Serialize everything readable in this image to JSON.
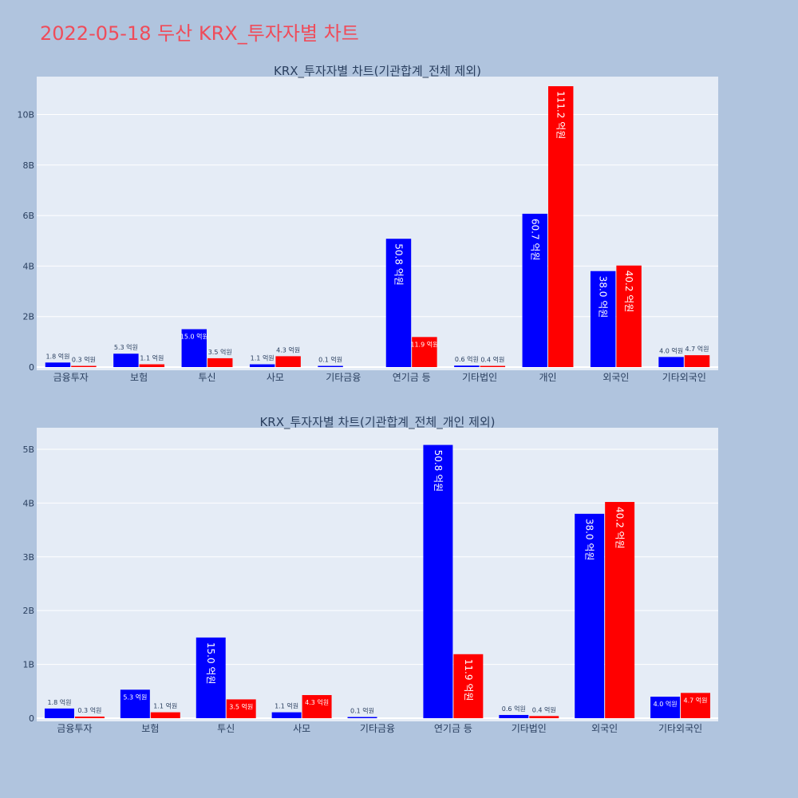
{
  "page_title": "2022-05-18 두산 KRX_투자자별 차트",
  "colors": {
    "background": "#b0c4de",
    "plot_bg": "#e5ecf6",
    "title": "#ef4c5a",
    "series_a": "#0000ff",
    "series_b": "#ff0000"
  },
  "chart_data": [
    {
      "type": "bar",
      "title": "KRX_투자자별 차트(기관합계_전체 제외)",
      "xlabel": "",
      "ylabel": "",
      "categories": [
        "금융투자",
        "보험",
        "투신",
        "사모",
        "기타금융",
        "연기금 등",
        "기타법인",
        "개인",
        "외국인",
        "기타외국인"
      ],
      "ylim": [
        0,
        11.5
      ],
      "yticks": [
        0,
        2,
        4,
        6,
        8,
        10
      ],
      "ytick_labels": [
        "0",
        "2B",
        "4B",
        "6B",
        "8B",
        "10B"
      ],
      "grid": true,
      "series": [
        {
          "values": [
            0.18,
            0.53,
            1.5,
            0.11,
            0.01,
            5.08,
            0.06,
            6.07,
            3.8,
            0.4
          ],
          "labels": [
            "1.8 억원",
            "5.3 억원",
            "15.0 억원",
            "1.1 억원",
            "0.1 억원",
            "50.8 억원",
            "0.6 억원",
            "60.7 억원",
            "38.0 억원",
            "4.0 억원"
          ]
        },
        {
          "values": [
            0.03,
            0.11,
            0.35,
            0.43,
            null,
            1.19,
            0.04,
            11.12,
            4.02,
            0.47
          ],
          "labels": [
            "0.3 억원",
            "1.1 억원",
            "3.5 억원",
            "4.3 억원",
            null,
            "11.9 억원",
            "0.4 억원",
            "111.2 억원",
            "40.2 억원",
            "4.7 억원"
          ]
        }
      ]
    },
    {
      "type": "bar",
      "title": "KRX_투자자별 차트(기관합계_전체_개인 제외)",
      "xlabel": "",
      "ylabel": "",
      "categories": [
        "금융투자",
        "보험",
        "투신",
        "사모",
        "기타금융",
        "연기금 등",
        "기타법인",
        "외국인",
        "기타외국인"
      ],
      "ylim": [
        0,
        5.4
      ],
      "yticks": [
        0,
        1,
        2,
        3,
        4,
        5
      ],
      "ytick_labels": [
        "0",
        "1B",
        "2B",
        "3B",
        "4B",
        "5B"
      ],
      "grid": true,
      "series": [
        {
          "values": [
            0.18,
            0.53,
            1.5,
            0.11,
            0.01,
            5.08,
            0.06,
            3.8,
            0.4
          ],
          "labels": [
            "1.8 억원",
            "5.3 억원",
            "15.0 억원",
            "1.1 억원",
            "0.1 억원",
            "50.8 억원",
            "0.6 억원",
            "38.0 억원",
            "4.0 억원"
          ]
        },
        {
          "values": [
            0.03,
            0.11,
            0.35,
            0.43,
            null,
            1.19,
            0.04,
            4.02,
            0.47
          ],
          "labels": [
            "0.3 억원",
            "1.1 억원",
            "3.5 억원",
            "4.3 억원",
            null,
            "11.9 억원",
            "0.4 억원",
            "40.2 억원",
            "4.7 억원"
          ]
        }
      ]
    }
  ]
}
